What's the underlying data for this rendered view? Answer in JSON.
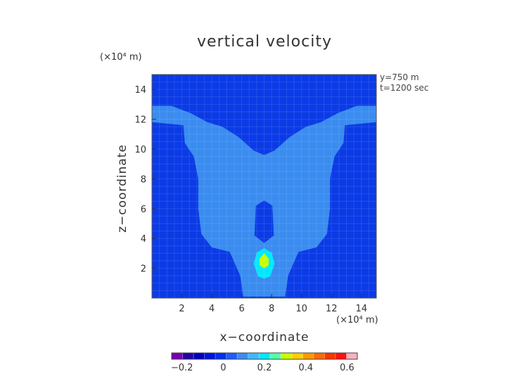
{
  "chart_data": {
    "type": "heatmap",
    "title": "vertical velocity",
    "xlabel": "x−coordinate",
    "ylabel": "z−coordinate",
    "x_unit_label": "(×10⁴ m)",
    "y_unit_label": "(×10⁴ m)",
    "annotations": [
      "y=750 m",
      "t=1200 sec"
    ],
    "xlim": [
      0,
      15
    ],
    "ylim": [
      0,
      15
    ],
    "x_ticks": [
      2,
      4,
      6,
      8,
      10,
      12,
      14
    ],
    "y_ticks": [
      2,
      4,
      6,
      8,
      10,
      12,
      14
    ],
    "colorbar": {
      "range": [
        -0.25,
        0.65
      ],
      "ticks": [
        "−0.2",
        "0",
        "0.2",
        "0.4",
        "0.6"
      ],
      "tick_values": [
        -0.2,
        0,
        0.2,
        0.4,
        0.6
      ],
      "colors": [
        "#7a00b0",
        "#2200a8",
        "#0000c0",
        "#0012dd",
        "#0030f0",
        "#1e5cff",
        "#3a8cf0",
        "#40b8ff",
        "#00e8ff",
        "#55ffaa",
        "#c8ff00",
        "#ffd000",
        "#ff9900",
        "#ff6a00",
        "#ff3300",
        "#ff1010",
        "#ffb0c0"
      ]
    },
    "regions": [
      {
        "level": "0 to 0.05",
        "color": "#3a8cf0",
        "outline": [
          [
            6.1,
            0.1
          ],
          [
            5.9,
            1.5
          ],
          [
            5.2,
            3.1
          ],
          [
            4.0,
            3.4
          ],
          [
            3.3,
            4.3
          ],
          [
            3.1,
            6.0
          ],
          [
            3.1,
            8.0
          ],
          [
            2.8,
            9.5
          ],
          [
            2.2,
            10.4
          ],
          [
            2.1,
            11.6
          ],
          [
            0,
            11.8
          ],
          [
            0,
            12.9
          ],
          [
            1.3,
            12.9
          ],
          [
            2.6,
            12.4
          ],
          [
            3.7,
            11.8
          ],
          [
            4.7,
            11.5
          ],
          [
            5.8,
            10.8
          ],
          [
            6.8,
            9.9
          ],
          [
            7.5,
            9.6
          ],
          [
            8.2,
            9.9
          ],
          [
            9.2,
            10.8
          ],
          [
            10.3,
            11.5
          ],
          [
            11.3,
            11.8
          ],
          [
            12.4,
            12.4
          ],
          [
            13.7,
            12.9
          ],
          [
            15,
            12.9
          ],
          [
            15,
            11.8
          ],
          [
            12.9,
            11.6
          ],
          [
            12.8,
            10.4
          ],
          [
            12.2,
            9.5
          ],
          [
            11.9,
            8.0
          ],
          [
            11.9,
            6.0
          ],
          [
            11.7,
            4.3
          ],
          [
            11.0,
            3.4
          ],
          [
            9.8,
            3.1
          ],
          [
            9.1,
            1.5
          ],
          [
            8.9,
            0.1
          ]
        ]
      },
      {
        "level": "below 0",
        "color": "#0b3be6",
        "outline": [
          [
            7.5,
            6.55
          ],
          [
            8.05,
            6.2
          ],
          [
            8.15,
            4.2
          ],
          [
            7.5,
            3.7
          ],
          [
            6.85,
            4.2
          ],
          [
            6.95,
            6.2
          ]
        ]
      },
      {
        "level": "0.1 to 0.15",
        "color": "#00e8ff",
        "outline": [
          [
            7.5,
            3.35
          ],
          [
            8.0,
            3.05
          ],
          [
            8.2,
            2.3
          ],
          [
            7.9,
            1.45
          ],
          [
            7.5,
            1.3
          ],
          [
            7.1,
            1.45
          ],
          [
            6.8,
            2.3
          ],
          [
            7.0,
            3.05
          ]
        ]
      },
      {
        "level": "0.2 to 0.25",
        "color": "#c8ff00",
        "outline": [
          [
            7.5,
            3.0
          ],
          [
            7.8,
            2.65
          ],
          [
            7.8,
            2.2
          ],
          [
            7.5,
            2.0
          ],
          [
            7.2,
            2.2
          ],
          [
            7.2,
            2.65
          ]
        ]
      }
    ]
  }
}
